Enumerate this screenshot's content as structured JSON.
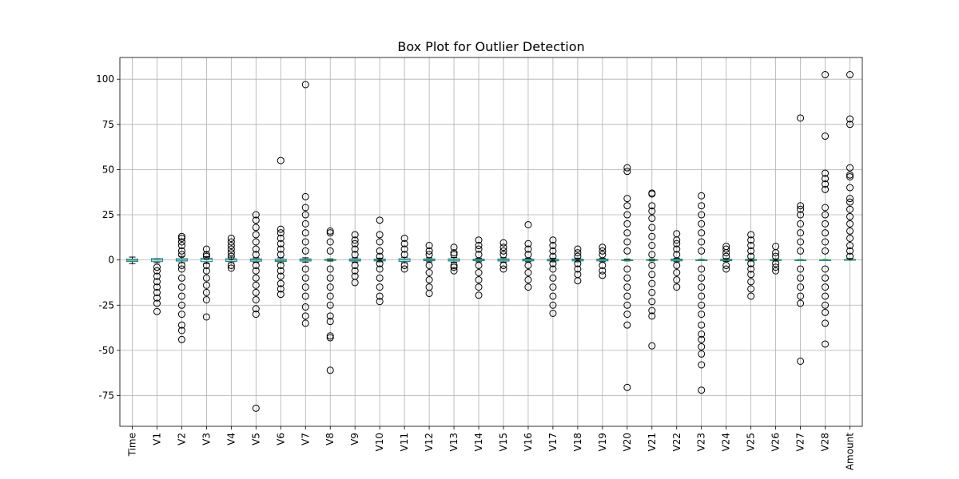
{
  "chart_data": {
    "type": "box",
    "title": "Box Plot for Outlier Detection",
    "xlabel": "",
    "ylabel": "",
    "ylim": [
      -92,
      112
    ],
    "yticks": [
      -75,
      -50,
      -25,
      0,
      25,
      50,
      75,
      100
    ],
    "grid": true,
    "colors": {
      "box": "#1f77b4",
      "median": "#2ca02c",
      "grid": "#b0b0b0",
      "flier": "#000000"
    },
    "categories": [
      "Time",
      "V1",
      "V2",
      "V3",
      "V4",
      "V5",
      "V6",
      "V7",
      "V8",
      "V9",
      "V10",
      "V11",
      "V12",
      "V13",
      "V14",
      "V15",
      "V16",
      "V17",
      "V18",
      "V19",
      "V20",
      "V21",
      "V22",
      "V23",
      "V24",
      "V25",
      "V26",
      "V27",
      "V28",
      "Amount"
    ],
    "boxes": [
      {
        "name": "Time",
        "q1": -0.85,
        "median": -0.2,
        "q3": 0.5,
        "whislo": -2.0,
        "whishi": 1.6,
        "fliers": []
      },
      {
        "name": "V1",
        "q1": -0.9,
        "median": 0.0,
        "q3": 0.8,
        "whislo": -1.5,
        "whishi": 0.8,
        "fliers": [
          -28.5,
          -24,
          -21,
          -18,
          -15,
          -12,
          -9,
          -6,
          -4
        ]
      },
      {
        "name": "V2",
        "q1": -0.6,
        "median": 0.0,
        "q3": 0.8,
        "whislo": -1.5,
        "whishi": 2.0,
        "fliers": [
          -44,
          -39,
          -36,
          -30,
          -25,
          -20,
          -15,
          -10,
          -5,
          -3,
          3,
          5,
          8,
          10,
          12,
          13
        ]
      },
      {
        "name": "V3",
        "q1": -0.9,
        "median": 0.2,
        "q3": 1.0,
        "whislo": -2.0,
        "whishi": 1.8,
        "fliers": [
          -31.5,
          -22,
          -18,
          -14,
          -10,
          -6,
          -3,
          2,
          3,
          6
        ]
      },
      {
        "name": "V4",
        "q1": -0.8,
        "median": 0.0,
        "q3": 0.7,
        "whislo": -1.5,
        "whishi": 1.6,
        "fliers": [
          -4.5,
          -3,
          2,
          4,
          6,
          8,
          10,
          12
        ]
      },
      {
        "name": "V5",
        "q1": -0.7,
        "median": 0.0,
        "q3": 0.6,
        "whislo": -1.2,
        "whishi": 1.2,
        "fliers": [
          -82,
          -30,
          -27,
          -22,
          -18,
          -14,
          -10,
          -6,
          -3,
          3,
          6,
          10,
          14,
          18,
          22,
          25
        ]
      },
      {
        "name": "V6",
        "q1": -0.8,
        "median": -0.3,
        "q3": 0.4,
        "whislo": -1.5,
        "whishi": 1.2,
        "fliers": [
          -19,
          -16,
          -13,
          -9,
          -6,
          -3,
          3,
          6,
          9,
          12,
          15,
          17,
          55
        ]
      },
      {
        "name": "V7",
        "q1": -0.6,
        "median": 0.0,
        "q3": 0.6,
        "whislo": -1.2,
        "whishi": 1.2,
        "fliers": [
          -35,
          -31,
          -26,
          -20,
          -15,
          -10,
          -5,
          5,
          10,
          15,
          20,
          25,
          29,
          35,
          97
        ]
      },
      {
        "name": "V8",
        "q1": -0.2,
        "median": 0.0,
        "q3": 0.3,
        "whislo": -0.6,
        "whishi": 0.6,
        "fliers": [
          -61,
          -43,
          -42,
          -34,
          -31,
          -25,
          -20,
          -15,
          -10,
          -5,
          5,
          10,
          15,
          16
        ]
      },
      {
        "name": "V9",
        "q1": -0.6,
        "median": -0.1,
        "q3": 0.6,
        "whislo": -1.2,
        "whishi": 1.2,
        "fliers": [
          -12.5,
          -9,
          -6,
          -3,
          3,
          6,
          9,
          11,
          14
        ]
      },
      {
        "name": "V10",
        "q1": -0.5,
        "median": -0.1,
        "q3": 0.5,
        "whislo": -1.0,
        "whishi": 1.0,
        "fliers": [
          -23,
          -20,
          -15,
          -10,
          -5,
          -2,
          2,
          5,
          10,
          14,
          22
        ]
      },
      {
        "name": "V11",
        "q1": -0.8,
        "median": 0.0,
        "q3": 0.7,
        "whislo": -1.5,
        "whishi": 1.5,
        "fliers": [
          -5,
          -3,
          3,
          6,
          9,
          12
        ]
      },
      {
        "name": "V12",
        "q1": -0.4,
        "median": 0.1,
        "q3": 0.6,
        "whislo": -1.0,
        "whishi": 1.2,
        "fliers": [
          -18.5,
          -15,
          -11,
          -7,
          -3,
          3,
          5,
          8
        ]
      },
      {
        "name": "V13",
        "q1": -0.6,
        "median": 0.0,
        "q3": 0.7,
        "whislo": -1.3,
        "whishi": 1.4,
        "fliers": [
          -6,
          -4,
          -3,
          3,
          4,
          7
        ]
      },
      {
        "name": "V14",
        "q1": -0.4,
        "median": 0.05,
        "q3": 0.5,
        "whislo": -1.0,
        "whishi": 1.0,
        "fliers": [
          -19.5,
          -15,
          -11,
          -7,
          -3,
          3,
          6,
          8,
          11
        ]
      },
      {
        "name": "V15",
        "q1": -0.6,
        "median": 0.0,
        "q3": 0.6,
        "whislo": -1.2,
        "whishi": 1.2,
        "fliers": [
          -5,
          -3,
          3,
          5,
          7,
          9.5
        ]
      },
      {
        "name": "V16",
        "q1": -0.5,
        "median": 0.0,
        "q3": 0.5,
        "whislo": -1.0,
        "whishi": 1.0,
        "fliers": [
          -15,
          -11,
          -7,
          -3,
          3,
          6,
          9,
          19.5
        ]
      },
      {
        "name": "V17",
        "q1": -0.5,
        "median": -0.1,
        "q3": 0.4,
        "whislo": -1.0,
        "whishi": 0.9,
        "fliers": [
          -29.5,
          -25,
          -20,
          -15,
          -10,
          -5,
          -2,
          2,
          5,
          8,
          11
        ]
      },
      {
        "name": "V18",
        "q1": -0.5,
        "median": 0.0,
        "q3": 0.5,
        "whislo": -1.0,
        "whishi": 1.0,
        "fliers": [
          -11.5,
          -8,
          -5,
          -2,
          2,
          4,
          6
        ]
      },
      {
        "name": "V19",
        "q1": -0.5,
        "median": 0.0,
        "q3": 0.5,
        "whislo": -1.0,
        "whishi": 1.0,
        "fliers": [
          -8.5,
          -6,
          -3,
          3,
          5,
          7
        ]
      },
      {
        "name": "V20",
        "q1": -0.2,
        "median": -0.1,
        "q3": 0.1,
        "whislo": -0.5,
        "whishi": 0.5,
        "fliers": [
          -70.5,
          -36,
          -30,
          -25,
          -20,
          -15,
          -10,
          -5,
          5,
          10,
          15,
          20,
          25,
          30,
          34,
          49,
          51
        ]
      },
      {
        "name": "V21",
        "q1": -0.2,
        "median": 0.0,
        "q3": 0.2,
        "whislo": -0.5,
        "whishi": 0.5,
        "fliers": [
          -47.5,
          -31,
          -28,
          -23,
          -18,
          -13,
          -8,
          -3,
          3,
          8,
          13,
          18,
          23,
          27,
          30,
          36.5,
          37
        ]
      },
      {
        "name": "V22",
        "q1": -0.5,
        "median": 0.0,
        "q3": 0.5,
        "whislo": -1.0,
        "whishi": 1.0,
        "fliers": [
          -15,
          -11,
          -7,
          -3,
          3,
          6,
          9,
          11,
          14.5
        ]
      },
      {
        "name": "V23",
        "q1": -0.1,
        "median": 0.0,
        "q3": 0.1,
        "whislo": -0.3,
        "whishi": 0.3,
        "fliers": [
          -72,
          -58,
          -52,
          -48,
          -44,
          -41,
          -36,
          -30,
          -25,
          -20,
          -15,
          -10,
          -5,
          5,
          10,
          15,
          20,
          25,
          30,
          35.5
        ]
      },
      {
        "name": "V24",
        "q1": -0.4,
        "median": 0.0,
        "q3": 0.4,
        "whislo": -0.8,
        "whishi": 0.8,
        "fliers": [
          -5,
          -3,
          2,
          4,
          6,
          7.5
        ]
      },
      {
        "name": "V25",
        "q1": -0.3,
        "median": 0.0,
        "q3": 0.3,
        "whislo": -0.6,
        "whishi": 0.6,
        "fliers": [
          -20,
          -16,
          -12,
          -8,
          -5,
          -2,
          2,
          5,
          8,
          11,
          14
        ]
      },
      {
        "name": "V26",
        "q1": -0.3,
        "median": 0.0,
        "q3": 0.2,
        "whislo": -0.6,
        "whishi": 0.6,
        "fliers": [
          -6,
          -4,
          -2,
          2,
          4,
          7.5
        ]
      },
      {
        "name": "V27",
        "q1": -0.1,
        "median": 0.0,
        "q3": 0.1,
        "whislo": -0.2,
        "whishi": 0.2,
        "fliers": [
          -56,
          -24,
          -20,
          -15,
          -10,
          -5,
          5,
          10,
          15,
          20,
          25,
          28,
          30,
          78.5
        ]
      },
      {
        "name": "V28",
        "q1": -0.05,
        "median": 0.0,
        "q3": 0.1,
        "whislo": -0.15,
        "whishi": 0.2,
        "fliers": [
          -46.5,
          -35,
          -29,
          -25,
          -20,
          -15,
          -10,
          -5,
          5,
          10,
          15,
          20,
          25,
          29,
          39,
          42,
          45,
          48,
          68.5,
          102.5
        ]
      },
      {
        "name": "Amount",
        "q1": 0.0,
        "median": 0.05,
        "q3": 0.3,
        "whislo": -0.1,
        "whishi": 0.8,
        "fliers": [
          2,
          5,
          8,
          12,
          16,
          20,
          24,
          28,
          32,
          34,
          40,
          46,
          47,
          51,
          75,
          78,
          102.5
        ]
      }
    ]
  }
}
